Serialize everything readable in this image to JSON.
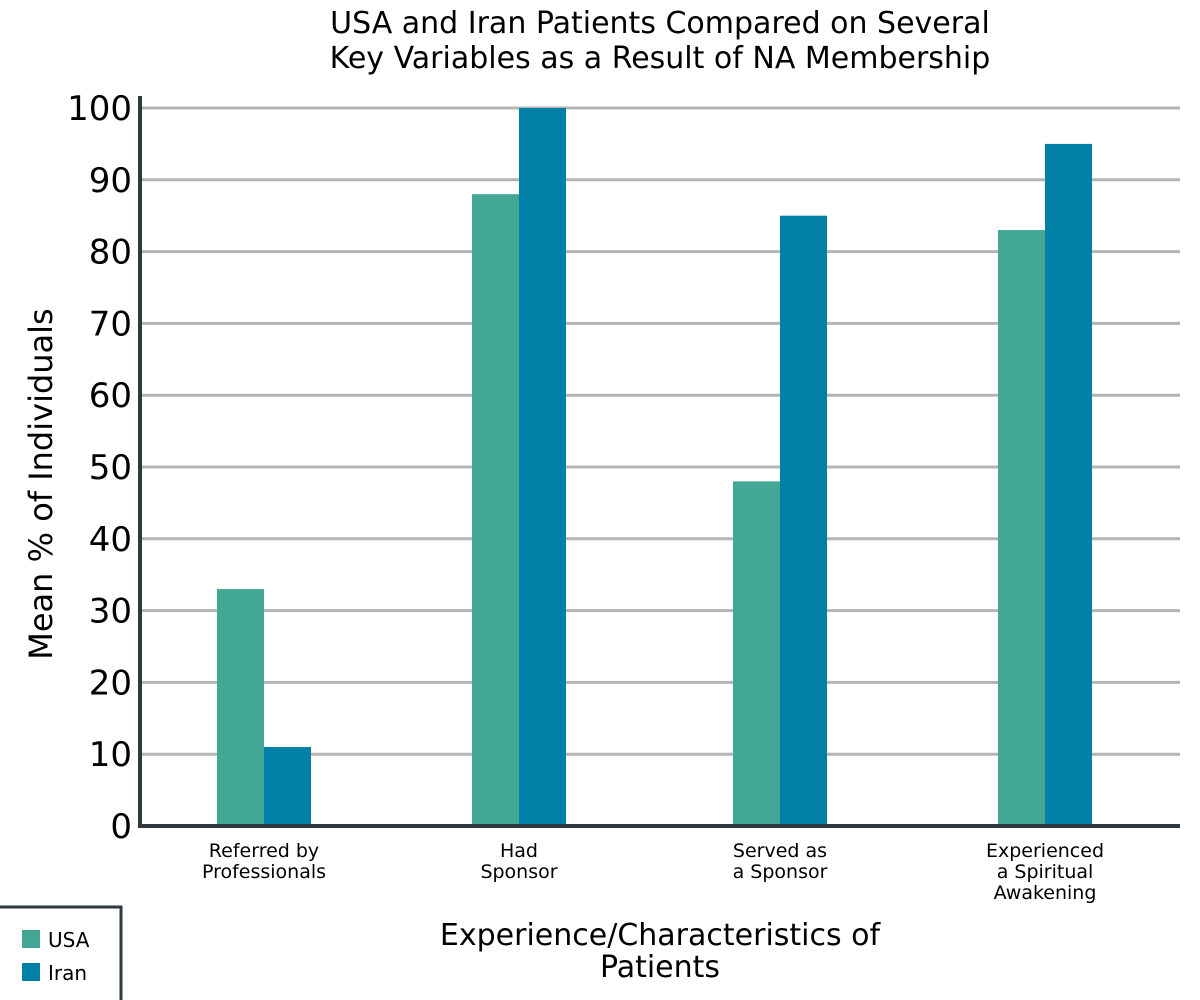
{
  "chart_data": {
    "type": "bar",
    "title": [
      "USA and Iran Patients Compared on Several",
      "Key Variables as a Result of NA Membership"
    ],
    "xlabel": [
      "Experience/Characteristics of",
      "Patients"
    ],
    "ylabel": "Mean % of Individuals",
    "ylim": [
      0,
      100
    ],
    "yticks": [
      0,
      10,
      20,
      30,
      40,
      50,
      60,
      70,
      80,
      90,
      100
    ],
    "grid": true,
    "legend_position": "bottom-left",
    "categories": [
      [
        "Referred by",
        "Professionals"
      ],
      [
        "Had",
        "Sponsor"
      ],
      [
        "Served as",
        "a Sponsor"
      ],
      [
        "Experienced",
        "a Spiritual",
        "Awakening"
      ]
    ],
    "series": [
      {
        "name": "USA",
        "color": "#43a795",
        "values": [
          33,
          88,
          48,
          83
        ]
      },
      {
        "name": "Iran",
        "color": "#0080a6",
        "values": [
          11,
          100,
          85,
          95
        ]
      }
    ]
  }
}
